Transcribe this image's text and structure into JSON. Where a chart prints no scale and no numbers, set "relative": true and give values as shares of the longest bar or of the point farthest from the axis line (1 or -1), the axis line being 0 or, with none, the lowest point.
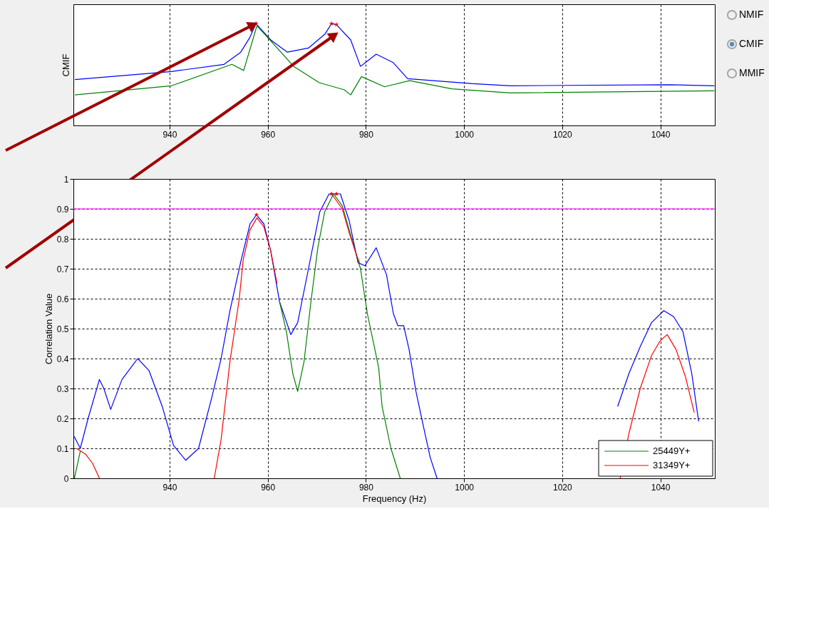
{
  "chart_data": [
    {
      "type": "line",
      "ylabel": "CMIF",
      "relative": true,
      "xlim": [
        920.4,
        1051.1
      ],
      "xticks": [
        940,
        960,
        980,
        1000,
        1020,
        1040
      ],
      "grid": "x",
      "line_style": "solid",
      "annotations": [
        "NMIF",
        "CMIF",
        "MMIF"
      ],
      "series": [
        {
          "color": "#0000ff",
          "x": [
            920.7,
            940.4,
            951.1,
            954.5,
            956.3,
            957.6,
            960.6,
            964.0,
            968.3,
            971.7,
            973.0,
            974.0,
            976.9,
            978.9,
            982.1,
            985.5,
            988.5,
            1001.8,
            1009.5,
            1042.0,
            1051.0
          ],
          "values": [
            0.45,
            0.53,
            0.6,
            0.72,
            0.86,
            1.0,
            0.84,
            0.72,
            0.76,
            0.9,
            1.0,
            0.99,
            0.84,
            0.58,
            0.7,
            0.62,
            0.46,
            0.41,
            0.39,
            0.4,
            0.39
          ]
        },
        {
          "color": "#008000",
          "x": [
            920.7,
            940.4,
            952.7,
            955.1,
            957.8,
            965.3,
            970.5,
            975.6,
            976.9,
            979.1,
            983.8,
            988.9,
            997.5,
            1009.5,
            1051.0
          ],
          "values": [
            0.3,
            0.39,
            0.6,
            0.54,
            0.98,
            0.58,
            0.42,
            0.35,
            0.3,
            0.48,
            0.38,
            0.44,
            0.36,
            0.32,
            0.34
          ]
        },
        {
          "type": "scatter",
          "marker": "star",
          "color": "#ff0000",
          "x": [
            957.6,
            973.0,
            974.0
          ],
          "values": [
            1.0,
            1.0,
            0.99
          ]
        }
      ]
    },
    {
      "type": "line",
      "xlabel": "Frequency (Hz)",
      "ylabel": "Correlation Value",
      "xlim": [
        920.4,
        1051.1
      ],
      "xticks": [
        940,
        960,
        980,
        1000,
        1020,
        1040
      ],
      "ylim": [
        0,
        1
      ],
      "yticks": [
        0,
        0.1,
        0.2,
        0.3,
        0.4,
        0.5,
        0.6,
        0.7,
        0.8,
        0.9,
        1
      ],
      "grid": true,
      "legend": "bottom right",
      "line_style": "solid",
      "ref_lines": [
        {
          "axis": "y",
          "value": 0.9,
          "color": "#ff00ff"
        }
      ],
      "series": [
        {
          "color": "#0000ff",
          "x": [
            920.55,
            921.8,
            923.4,
            925.7,
            926.6,
            928.0,
            930.3,
            933.5,
            935.8,
            938.5,
            940.8,
            943.3,
            945.9,
            948.6,
            950.5,
            952.3,
            954.6,
            956.4,
            957.7,
            959.2,
            960.6,
            962.4,
            964.7,
            966.1,
            968.3,
            970.6,
            972.5,
            974.8,
            976.6,
            978.4,
            979.8,
            982.1,
            984.2,
            985.6,
            986.5,
            987.7,
            988.8,
            990.2,
            991.5,
            993.1,
            994.5,
            1010.0,
            1031.3,
            1033.6,
            1035.9,
            1038.2,
            1040.7,
            1042.7,
            1044.6,
            1046.4,
            1047.8
          ],
          "values": [
            0.14,
            0.1,
            0.2,
            0.33,
            0.3,
            0.23,
            0.33,
            0.4,
            0.36,
            0.24,
            0.11,
            0.06,
            0.1,
            0.27,
            0.4,
            0.56,
            0.73,
            0.85,
            0.88,
            0.85,
            0.76,
            0.59,
            0.48,
            0.52,
            0.7,
            0.89,
            0.95,
            0.95,
            0.86,
            0.72,
            0.71,
            0.77,
            0.68,
            0.55,
            0.51,
            0.51,
            0.43,
            0.29,
            0.19,
            0.07,
            0.0,
            null,
            0.24,
            0.35,
            0.44,
            0.52,
            0.56,
            0.54,
            0.49,
            0.35,
            0.19
          ]
        },
        {
          "name": "25449Y+",
          "color": "#008000",
          "x": [
            920.6,
            921.8,
            940.0,
            962.4,
            963.8,
            965.1,
            966.1,
            967.4,
            968.8,
            970.2,
            971.6,
            973.4,
            975.2,
            977.1,
            978.9,
            980.3,
            982.6,
            983.3,
            985.1,
            987.0
          ],
          "values": [
            0.0,
            0.09,
            null,
            0.59,
            0.49,
            0.35,
            0.29,
            0.39,
            0.59,
            0.77,
            0.89,
            0.95,
            0.91,
            0.8,
            0.7,
            0.55,
            0.37,
            0.24,
            0.1,
            0.0
          ]
        },
        {
          "name": "31349Y+",
          "color": "#ff0000",
          "x": [
            921.0,
            922.0,
            922.9,
            924.3,
            925.7,
            935.0,
            949.1,
            950.5,
            952.3,
            954.2,
            955.0,
            956.4,
            957.8,
            959.2,
            960.6,
            961.9,
            967.0,
            973.0,
            975.2,
            976.6,
            978.0,
            978.7,
            1000.0,
            1031.8,
            1033.6,
            1035.9,
            1038.2,
            1040.0,
            1041.4,
            1043.2,
            1045.1,
            1046.9
          ],
          "values": [
            0.1,
            0.09,
            0.08,
            0.05,
            0.0,
            null,
            0.0,
            0.13,
            0.39,
            0.6,
            0.73,
            0.83,
            0.87,
            0.84,
            0.76,
            0.65,
            null,
            0.95,
            0.9,
            0.82,
            0.75,
            0.72,
            null,
            0.0,
            0.15,
            0.3,
            0.41,
            0.46,
            0.48,
            0.43,
            0.34,
            0.22
          ]
        },
        {
          "type": "scatter",
          "marker": "star",
          "color": "#ff0000",
          "x": [
            957.7,
            973.0,
            974.0
          ],
          "values": [
            0.88,
            0.95,
            0.95
          ]
        }
      ]
    }
  ]
}
